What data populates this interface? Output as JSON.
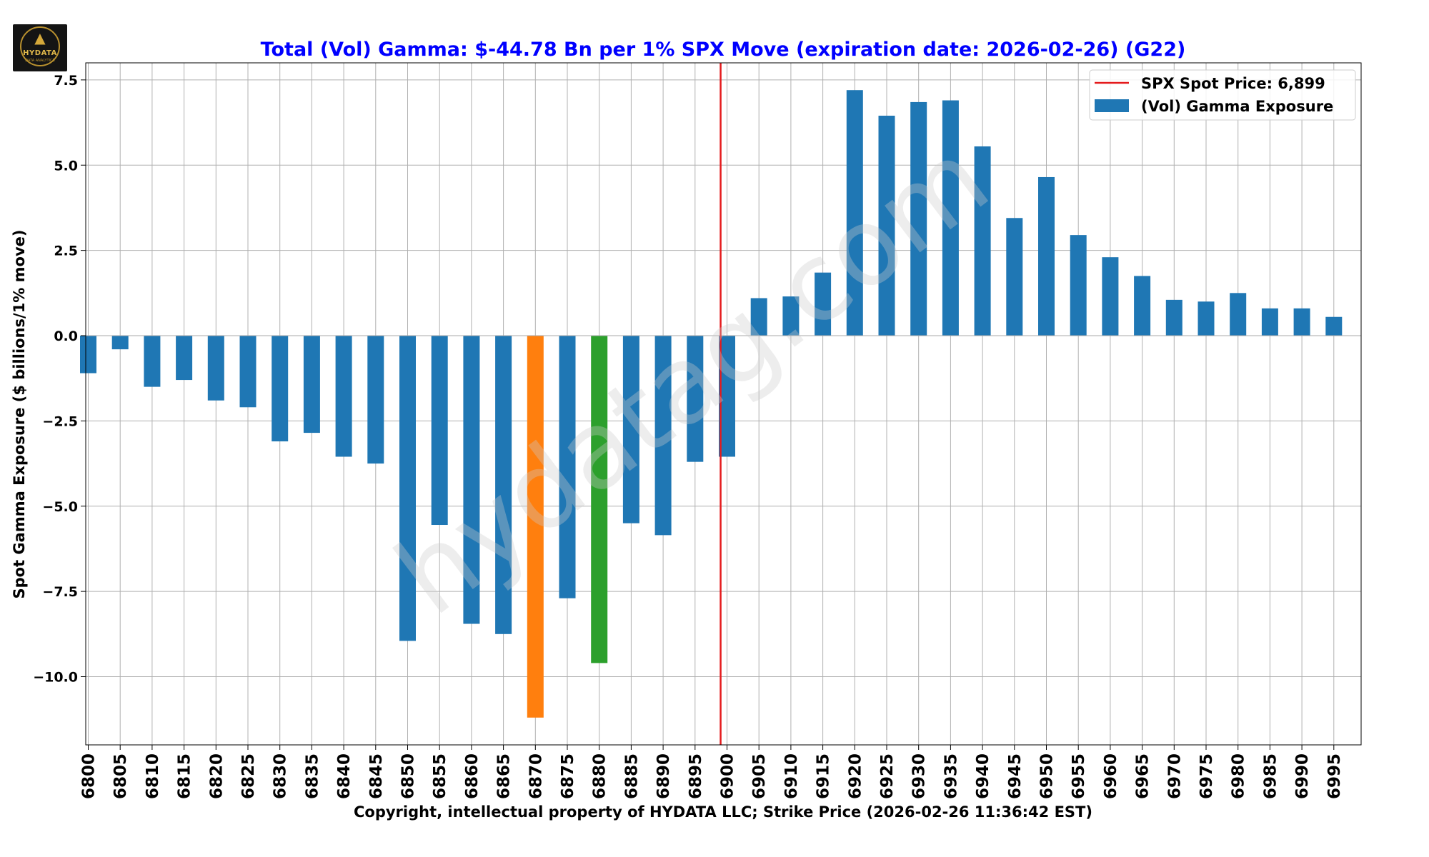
{
  "logo": {
    "text": "HYDATA",
    "subtext": "DATA ANALYTICS",
    "icon": "wolf-icon"
  },
  "watermark": "hydatag.com",
  "chart_data": {
    "type": "bar",
    "title": "Total (Vol) Gamma: $-44.78 Bn per 1% SPX Move (expiration date: 2026-02-26) (G22)",
    "xlabel": "Copyright, intellectual property of HYDATA LLC; Strike Price (2026-02-26 11:36:42 EST)",
    "ylabel": "Spot Gamma Exposure ($ billions/1% move)",
    "ylim": [
      -12.0,
      8.0
    ],
    "yticks": [
      7.5,
      5.0,
      2.5,
      0.0,
      -2.5,
      -5.0,
      -7.5,
      -10.0
    ],
    "ytick_labels": [
      "7.5",
      "5.0",
      "2.5",
      "0.0",
      "−2.5",
      "−5.0",
      "−7.5",
      "−10.0"
    ],
    "grid": true,
    "legend_position": "top-right",
    "categories": [
      "6800",
      "6805",
      "6810",
      "6815",
      "6820",
      "6825",
      "6830",
      "6835",
      "6840",
      "6845",
      "6850",
      "6855",
      "6860",
      "6865",
      "6870",
      "6875",
      "6880",
      "6885",
      "6890",
      "6895",
      "6900",
      "6905",
      "6910",
      "6915",
      "6920",
      "6925",
      "6930",
      "6935",
      "6940",
      "6945",
      "6950",
      "6955",
      "6960",
      "6965",
      "6970",
      "6975",
      "6980",
      "6985",
      "6990",
      "6995"
    ],
    "series": [
      {
        "name": "(Vol) Gamma Exposure",
        "color": "#1f77b4",
        "values": [
          -1.1,
          -0.4,
          -1.5,
          -1.3,
          -1.9,
          -2.1,
          -3.1,
          -2.85,
          -3.55,
          -3.75,
          -8.95,
          -5.55,
          -8.45,
          -8.75,
          -11.2,
          -7.7,
          -9.6,
          -5.5,
          -5.85,
          -3.7,
          -3.55,
          1.1,
          1.15,
          1.85,
          7.2,
          6.45,
          6.85,
          6.9,
          5.55,
          3.45,
          4.65,
          2.95,
          2.3,
          1.75,
          1.05,
          1.0,
          1.25,
          0.8,
          0.8,
          0.55
        ]
      }
    ],
    "highlights": [
      {
        "category": "6870",
        "color": "#ff7f0e"
      },
      {
        "category": "6880",
        "color": "#2ca02c"
      }
    ],
    "spot_line": {
      "label": "SPX Spot Price: 6,899",
      "value": 6899,
      "color": "#e41a1c"
    },
    "colors": {
      "title": "#0000ff",
      "bar": "#1f77b4",
      "grid": "#b0b0b0"
    }
  }
}
